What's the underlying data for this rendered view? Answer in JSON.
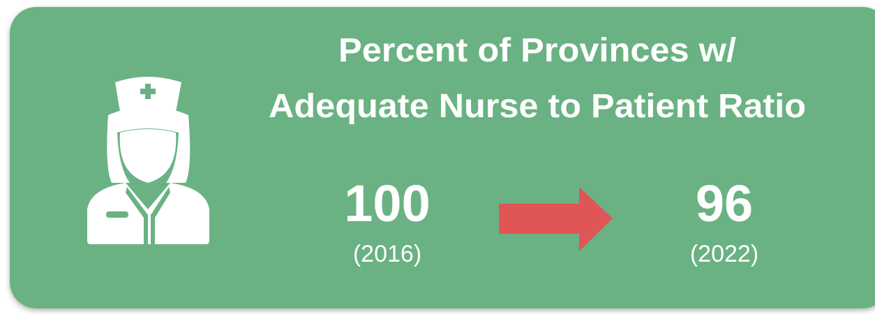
{
  "card": {
    "title": [
      "Percent of Provinces w/",
      "Adequate Nurse to Patient Ratio"
    ],
    "from": {
      "value": 100,
      "label": "(2016)"
    },
    "to": {
      "value": 96,
      "label": "(2022)"
    }
  }
}
